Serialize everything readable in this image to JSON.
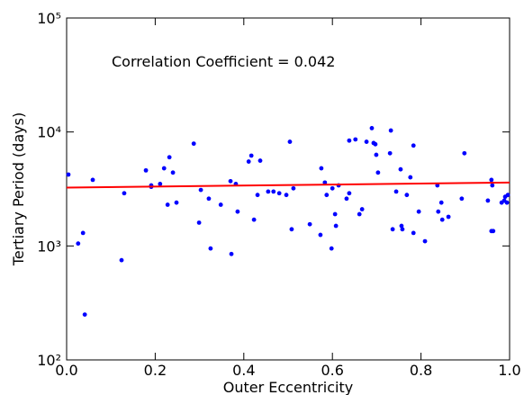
{
  "chart_data": {
    "type": "scatter",
    "annotation": "Correlation Coefficient = 0.042",
    "annotation_color": "#ff0000",
    "xlabel": "Outer Eccentricity",
    "ylabel": "Tertiary Period (days)",
    "color": "#0000ff",
    "log_y": true,
    "xlim": [
      0,
      1
    ],
    "ylim": [
      100,
      100000
    ],
    "xticks": [
      {
        "value": 0,
        "label": "0.0"
      },
      0.2,
      0.4,
      0.6,
      0.8,
      {
        "value": 1,
        "label": "1.0"
      }
    ],
    "yticks": [
      {
        "value": 100,
        "label": "10²"
      },
      {
        "value": 1000,
        "label": "10³"
      },
      {
        "value": 10000,
        "label": "10⁴"
      },
      {
        "value": 100000,
        "label": "10⁵"
      }
    ],
    "x": [
      0.004,
      0.026,
      0.037,
      0.041,
      0.059,
      0.124,
      0.13,
      0.179,
      0.191,
      0.191,
      0.211,
      0.22,
      0.232,
      0.228,
      0.24,
      0.248,
      0.287,
      0.299,
      0.303,
      0.321,
      0.325,
      0.348,
      0.37,
      0.372,
      0.382,
      0.386,
      0.411,
      0.417,
      0.423,
      0.431,
      0.437,
      0.455,
      0.467,
      0.48,
      0.496,
      0.504,
      0.508,
      0.512,
      0.549,
      0.575,
      0.573,
      0.583,
      0.587,
      0.6,
      0.598,
      0.606,
      0.608,
      0.614,
      0.632,
      0.638,
      0.638,
      0.652,
      0.661,
      0.667,
      0.677,
      0.689,
      0.693,
      0.697,
      0.699,
      0.703,
      0.73,
      0.732,
      0.736,
      0.744,
      0.754,
      0.756,
      0.758,
      0.768,
      0.776,
      0.783,
      0.783,
      0.795,
      0.809,
      0.837,
      0.839,
      0.846,
      0.848,
      0.862,
      0.892,
      0.898,
      0.951,
      0.959,
      0.961,
      0.959,
      0.963,
      0.982,
      0.988,
      0.99,
      0.994,
      0.996
    ],
    "values": [
      4230,
      1050,
      1300,
      250,
      3800,
      750,
      2900,
      4600,
      3400,
      3300,
      3500,
      4800,
      6000,
      2300,
      4400,
      2400,
      7900,
      1600,
      3100,
      2600,
      950,
      2300,
      3700,
      850,
      3500,
      2000,
      5500,
      6200,
      1700,
      2800,
      5600,
      3000,
      3000,
      2900,
      2800,
      8200,
      1400,
      3200,
      1550,
      4800,
      1250,
      3600,
      2800,
      3200,
      950,
      1900,
      1500,
      3400,
      2600,
      2900,
      8400,
      8600,
      1900,
      2100,
      8200,
      10800,
      8000,
      7800,
      6300,
      4400,
      6500,
      10300,
      1400,
      3000,
      4700,
      1500,
      1400,
      2800,
      4000,
      7600,
      1300,
      2000,
      1100,
      3400,
      2000,
      2400,
      1700,
      1800,
      2600,
      6500,
      2500,
      3800,
      3400,
      1350,
      1350,
      2400,
      2500,
      2700,
      2400,
      2800
    ],
    "fit_line": {
      "x": [
        0,
        1
      ],
      "values": [
        3250,
        3600
      ],
      "color": "#ff0000"
    }
  }
}
